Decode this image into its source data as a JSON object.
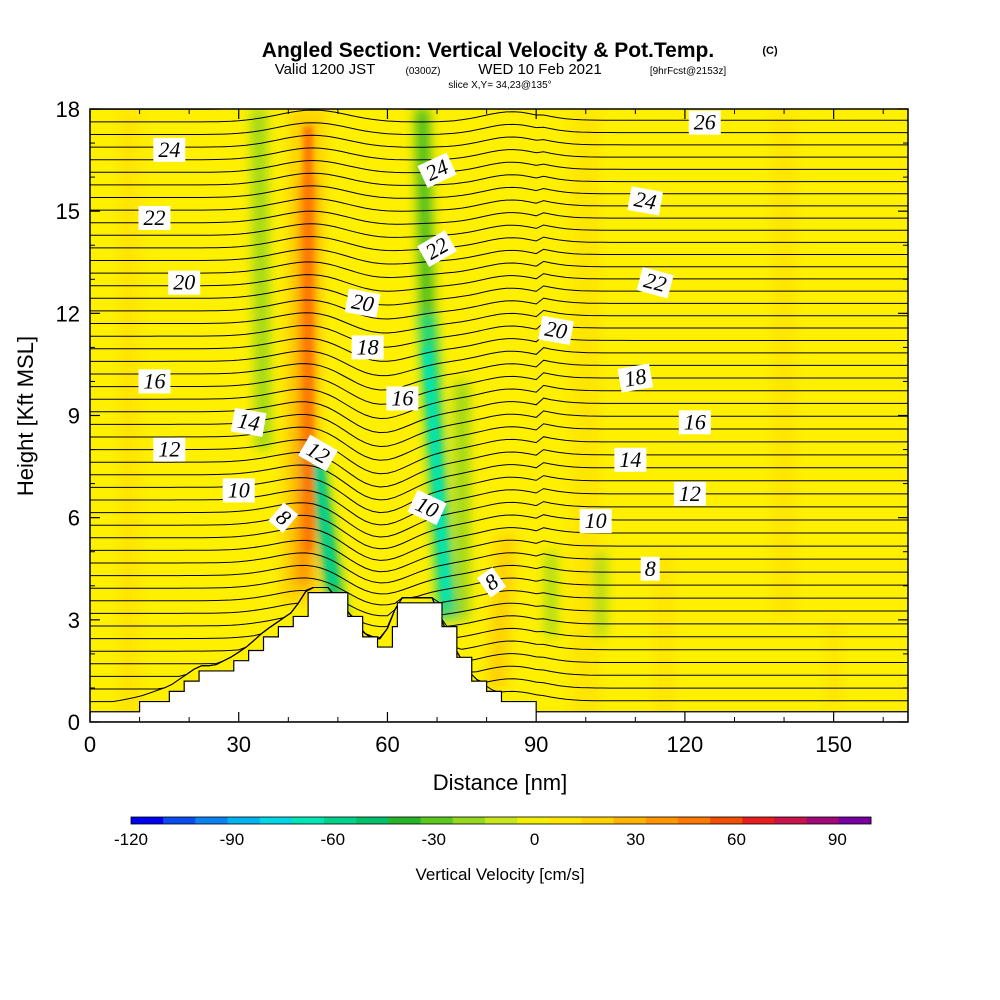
{
  "title": {
    "main": "Angled Section: Vertical Velocity & Pot.Temp.",
    "main_units": "(C)",
    "valid_a": "Valid 1200 JST",
    "valid_b": "(0300Z)",
    "valid_c": "WED 10 Feb 2021",
    "valid_d": "[9hrFcst@2153z]",
    "slice": "slice X,Y= 34,23@135°"
  },
  "chart_data": {
    "type": "heatmap",
    "xlabel": "Distance [nm]",
    "ylabel": "Height [Kft MSL]",
    "xlim": [
      0,
      165
    ],
    "ylim": [
      0,
      18
    ],
    "x_ticks": [
      "0",
      "30",
      "60",
      "90",
      "120",
      "150"
    ],
    "y_ticks": [
      "0",
      "3",
      "6",
      "9",
      "12",
      "15",
      "18"
    ],
    "terrain_profile": {
      "x": [
        0,
        10,
        16,
        19,
        22,
        25,
        29,
        32,
        35,
        38,
        41,
        44,
        48,
        52,
        55,
        58,
        61,
        62,
        64,
        66,
        68,
        69,
        71,
        74,
        77,
        80,
        83,
        86,
        89,
        90,
        165
      ],
      "height": [
        0.3,
        0.6,
        0.9,
        1.2,
        1.5,
        1.5,
        1.8,
        2.1,
        2.5,
        2.8,
        3.1,
        3.8,
        3.8,
        3.1,
        2.5,
        2.2,
        2.8,
        3.5,
        3.5,
        3.5,
        3.5,
        3.5,
        2.8,
        1.9,
        1.2,
        0.9,
        0.6,
        0.6,
        0.6,
        0.3,
        0.3
      ]
    },
    "vertical_velocity_features": [
      {
        "type": "updraft",
        "x_center": 44,
        "height_range": [
          4,
          18
        ],
        "peak_cm_s": 45
      },
      {
        "type": "downdraft",
        "x_center_base": 50,
        "x_center_top": 42,
        "height_range": [
          2.5,
          8
        ],
        "peak_cm_s": -55
      },
      {
        "type": "downdraft",
        "x_center_base": 72,
        "x_center_top": 67,
        "height_range": [
          2.5,
          18
        ],
        "peak_cm_s": -70
      },
      {
        "type": "updraft",
        "x_center": 82,
        "height_range": [
          1,
          5
        ],
        "peak_cm_s": 25
      },
      {
        "type": "updraft",
        "x_center": 100,
        "height_range": [
          0,
          18
        ],
        "peak_cm_s": 15
      },
      {
        "type": "updraft",
        "x_center": 8,
        "height_range": [
          0,
          18
        ],
        "peak_cm_s": 12
      }
    ],
    "theta_contours": {
      "interval": 1,
      "units": "C",
      "labels": [
        {
          "value": "24",
          "x": 16,
          "y": 16.8,
          "angle": 0
        },
        {
          "value": "22",
          "x": 13,
          "y": 14.8,
          "angle": 0
        },
        {
          "value": "20",
          "x": 19,
          "y": 12.9,
          "angle": 0
        },
        {
          "value": "16",
          "x": 13,
          "y": 10.0,
          "angle": 0
        },
        {
          "value": "14",
          "x": 32,
          "y": 8.8,
          "angle": 10
        },
        {
          "value": "12",
          "x": 16,
          "y": 8.0,
          "angle": 0
        },
        {
          "value": "10",
          "x": 30,
          "y": 6.8,
          "angle": 0
        },
        {
          "value": "8",
          "x": 39,
          "y": 6.0,
          "angle": 40
        },
        {
          "value": "12",
          "x": 46,
          "y": 7.9,
          "angle": 30
        },
        {
          "value": "20",
          "x": 55,
          "y": 12.3,
          "angle": 10
        },
        {
          "value": "18",
          "x": 56,
          "y": 11.0,
          "angle": 0
        },
        {
          "value": "16",
          "x": 63,
          "y": 9.5,
          "angle": 0
        },
        {
          "value": "24",
          "x": 70,
          "y": 16.2,
          "angle": -25
        },
        {
          "value": "22",
          "x": 70,
          "y": 13.9,
          "angle": -30
        },
        {
          "value": "10",
          "x": 68,
          "y": 6.3,
          "angle": 25
        },
        {
          "value": "8",
          "x": 81,
          "y": 4.1,
          "angle": -35
        },
        {
          "value": "26",
          "x": 124,
          "y": 17.6,
          "angle": 0
        },
        {
          "value": "24",
          "x": 112,
          "y": 15.3,
          "angle": 10
        },
        {
          "value": "22",
          "x": 114,
          "y": 12.9,
          "angle": 15
        },
        {
          "value": "20",
          "x": 94,
          "y": 11.5,
          "angle": 10
        },
        {
          "value": "18",
          "x": 110,
          "y": 10.1,
          "angle": -10
        },
        {
          "value": "16",
          "x": 122,
          "y": 8.8,
          "angle": 0
        },
        {
          "value": "14",
          "x": 109,
          "y": 7.7,
          "angle": 0
        },
        {
          "value": "12",
          "x": 121,
          "y": 6.7,
          "angle": 0
        },
        {
          "value": "10",
          "x": 102,
          "y": 5.9,
          "angle": 0
        },
        {
          "value": "8",
          "x": 113,
          "y": 4.5,
          "angle": 0
        }
      ]
    },
    "colorbar": {
      "label": "Vertical Velocity [cm/s]",
      "min": -120,
      "max": 100,
      "step": 10,
      "tick_labels": [
        "-120",
        "-90",
        "-60",
        "-30",
        "0",
        "30",
        "60",
        "90"
      ],
      "tick_values": [
        -120,
        -90,
        -60,
        -30,
        0,
        30,
        60,
        90
      ],
      "colors": [
        "#0000f0",
        "#0b4cf0",
        "#0a82f0",
        "#00b4f0",
        "#00d7e6",
        "#00e6b4",
        "#00d28c",
        "#00c06a",
        "#28b428",
        "#5ac81e",
        "#96d71e",
        "#c8e61e",
        "#f0f000",
        "#ffe600",
        "#ffd200",
        "#ffb400",
        "#ff9600",
        "#ff7800",
        "#f05000",
        "#e61e1e",
        "#c8144b",
        "#a00a78",
        "#7800a0"
      ]
    }
  }
}
